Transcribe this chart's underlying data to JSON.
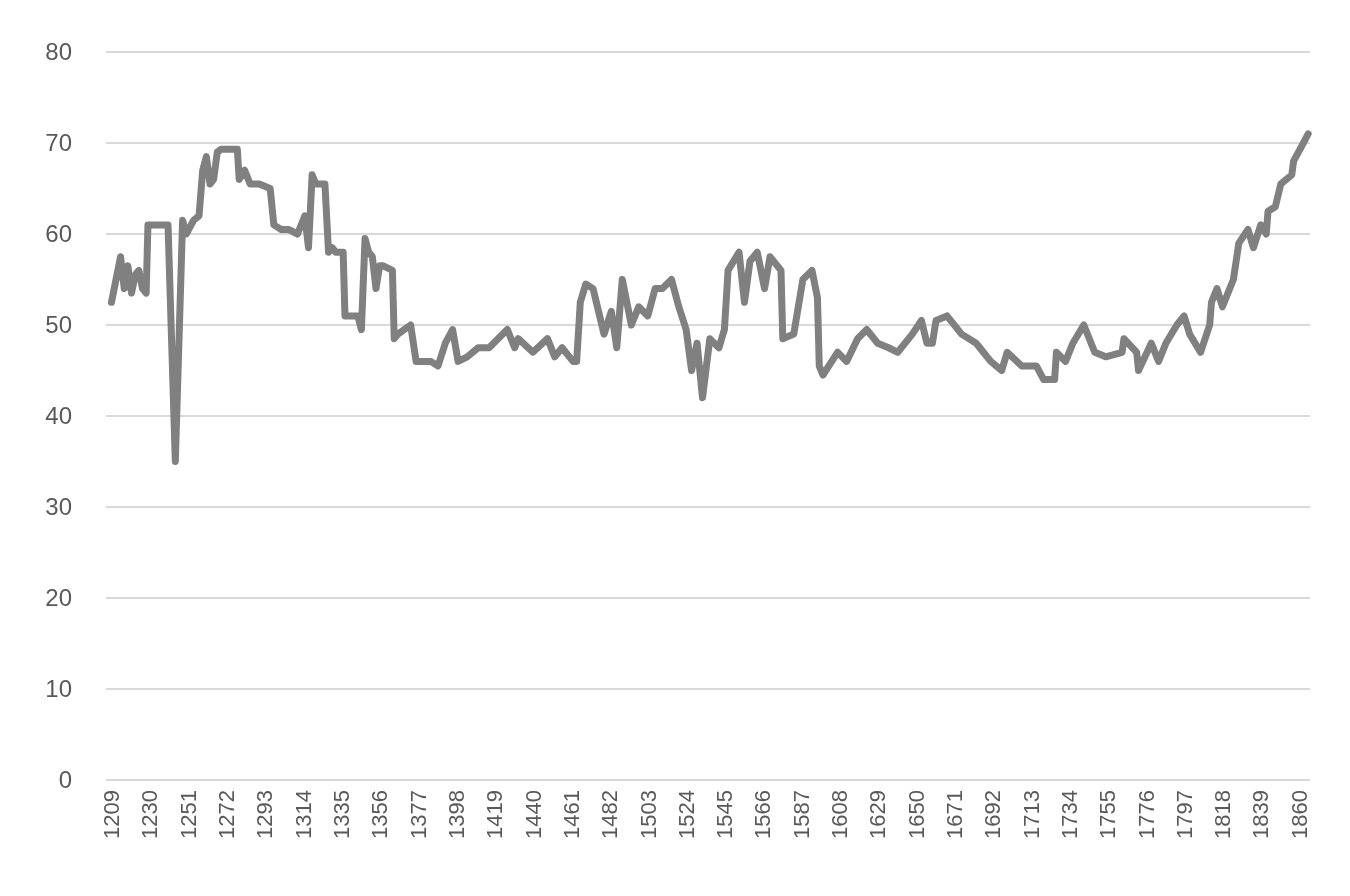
{
  "chart_data": {
    "type": "line",
    "xlim": [
      1206,
      1866
    ],
    "xticks": [
      1209,
      1230,
      1251,
      1272,
      1293,
      1314,
      1335,
      1356,
      1377,
      1398,
      1419,
      1440,
      1461,
      1482,
      1503,
      1524,
      1545,
      1566,
      1587,
      1608,
      1629,
      1650,
      1671,
      1692,
      1713,
      1734,
      1755,
      1776,
      1797,
      1818,
      1839,
      1860
    ],
    "ylim": [
      0,
      80
    ],
    "yticks": [
      0,
      10,
      20,
      30,
      40,
      50,
      60,
      70,
      80
    ],
    "grid": "y",
    "line_style": "solid",
    "marker": "none",
    "series": [
      {
        "color": "#808080",
        "x": [
          1209,
          1211,
          1214,
          1216,
          1218,
          1220,
          1222,
          1224,
          1226,
          1228,
          1229,
          1234,
          1240,
          1244,
          1248,
          1250,
          1254,
          1257,
          1259,
          1261,
          1263,
          1265,
          1267,
          1269,
          1278,
          1279,
          1282,
          1285,
          1290,
          1296,
          1298,
          1302,
          1306,
          1311,
          1315,
          1317,
          1319,
          1321,
          1326,
          1328,
          1330,
          1332,
          1336,
          1337,
          1344,
          1346,
          1348,
          1350,
          1352,
          1354,
          1356,
          1358,
          1363,
          1364,
          1366,
          1373,
          1376,
          1378,
          1384,
          1388,
          1392,
          1396,
          1399,
          1404,
          1410,
          1416,
          1426,
          1430,
          1432,
          1440,
          1448,
          1452,
          1456,
          1462,
          1464,
          1466,
          1469,
          1473,
          1479,
          1483,
          1486,
          1489,
          1494,
          1498,
          1503,
          1507,
          1511,
          1516,
          1520,
          1524,
          1527,
          1530,
          1533,
          1537,
          1542,
          1545,
          1547,
          1553,
          1556,
          1559,
          1563,
          1567,
          1570,
          1576,
          1577,
          1583,
          1588,
          1593,
          1596,
          1597,
          1599,
          1607,
          1612,
          1618,
          1623,
          1629,
          1635,
          1640,
          1648,
          1653,
          1656,
          1659,
          1661,
          1667,
          1675,
          1683,
          1691,
          1697,
          1700,
          1708,
          1716,
          1720,
          1726,
          1727,
          1732,
          1736,
          1742,
          1748,
          1754,
          1763,
          1764,
          1771,
          1772,
          1779,
          1783,
          1787,
          1793,
          1797,
          1800,
          1806,
          1811,
          1812,
          1815,
          1818,
          1824,
          1827,
          1832,
          1835,
          1839,
          1842,
          1843,
          1847,
          1850,
          1856,
          1857,
          1861,
          1865
        ],
        "values": [
          52.5,
          54.5,
          57.5,
          54,
          56.5,
          53.5,
          55.5,
          56,
          54,
          53.5,
          61,
          61,
          61,
          35,
          61.5,
          60,
          61.5,
          62,
          67,
          68.5,
          65.5,
          66,
          69,
          69.3,
          69.3,
          66,
          67,
          65.5,
          65.5,
          65,
          61,
          60.5,
          60.5,
          60,
          62,
          58.5,
          66.5,
          65.5,
          65.5,
          58,
          58.5,
          58,
          58,
          51,
          51,
          49.5,
          59.5,
          58,
          57.5,
          54,
          56.5,
          56.5,
          56,
          48.5,
          49,
          50,
          46,
          46,
          46,
          45.5,
          48,
          49.5,
          46,
          46.5,
          47.5,
          47.5,
          49.5,
          47.5,
          48.5,
          47,
          48.5,
          46.5,
          47.5,
          46,
          46,
          52.5,
          54.5,
          54,
          49,
          51.5,
          47.5,
          55,
          50,
          52,
          51,
          54,
          54,
          55,
          52,
          49.5,
          45,
          48,
          42,
          48.5,
          47.5,
          49.5,
          56,
          58,
          52.5,
          57,
          58,
          54,
          57.5,
          56,
          48.5,
          49,
          55,
          56,
          53,
          45.5,
          44.5,
          47,
          46,
          48.5,
          49.5,
          48,
          47.5,
          47,
          49,
          50.5,
          48,
          48,
          50.5,
          51,
          49,
          48,
          46,
          45,
          47,
          45.5,
          45.5,
          44,
          44,
          47,
          46,
          48,
          50,
          47,
          46.5,
          47,
          48.5,
          47,
          45,
          48,
          46,
          48,
          50,
          51,
          49,
          47,
          50,
          52.5,
          54,
          52,
          55,
          59,
          60.5,
          58.5,
          61,
          60,
          62.5,
          63,
          65.5,
          66.5,
          68,
          69.5,
          71
        ]
      }
    ]
  }
}
